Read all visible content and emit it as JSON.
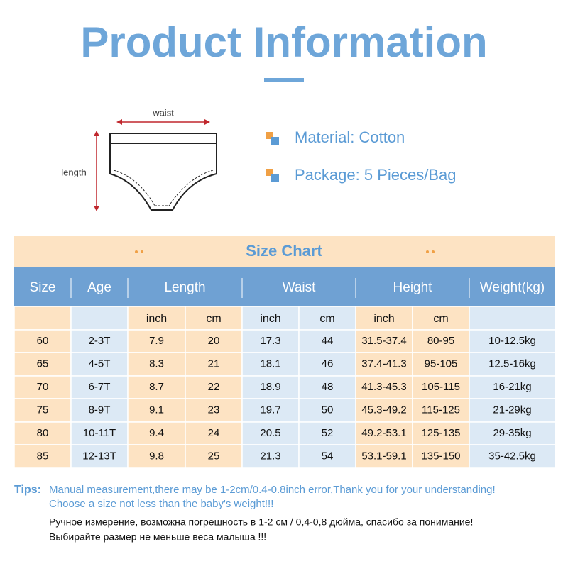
{
  "header": {
    "title": "Product Information"
  },
  "diagram": {
    "waist_label": "waist",
    "length_label": "length"
  },
  "features": [
    "Material: Cotton",
    "Package: 5 Pieces/Bag"
  ],
  "table": {
    "title": "Size Chart",
    "headers": [
      "Size",
      "Age",
      "Length",
      "Waist",
      "Height",
      "Weight(kg)"
    ],
    "subheaders": [
      "inch",
      "cm",
      "inch",
      "cm",
      "inch",
      "cm"
    ],
    "rows": [
      [
        "60",
        "2-3T",
        "7.9",
        "20",
        "17.3",
        "44",
        "31.5-37.4",
        "80-95",
        "10-12.5kg"
      ],
      [
        "65",
        "4-5T",
        "8.3",
        "21",
        "18.1",
        "46",
        "37.4-41.3",
        "95-105",
        "12.5-16kg"
      ],
      [
        "70",
        "6-7T",
        "8.7",
        "22",
        "18.9",
        "48",
        "41.3-45.3",
        "105-115",
        "16-21kg"
      ],
      [
        "75",
        "8-9T",
        "9.1",
        "23",
        "19.7",
        "50",
        "45.3-49.2",
        "115-125",
        "21-29kg"
      ],
      [
        "80",
        "10-11T",
        "9.4",
        "24",
        "20.5",
        "52",
        "49.2-53.1",
        "125-135",
        "29-35kg"
      ],
      [
        "85",
        "12-13T",
        "9.8",
        "25",
        "21.3",
        "54",
        "53.1-59.1",
        "135-150",
        "35-42.5kg"
      ]
    ]
  },
  "tips": {
    "label": "Tips:",
    "lines": [
      "Manual measurement,there may be 1-2cm/0.4-0.8inch error,Thank you for your understanding!",
      "Choose a size not less than the baby's weight!!!",
      "Ручное измерение, возможна погрешность в 1-2 см / 0,4-0,8 дюйма, спасибо за понимание!",
      "Выбирайте размер не меньше веса малыша !!!"
    ]
  }
}
